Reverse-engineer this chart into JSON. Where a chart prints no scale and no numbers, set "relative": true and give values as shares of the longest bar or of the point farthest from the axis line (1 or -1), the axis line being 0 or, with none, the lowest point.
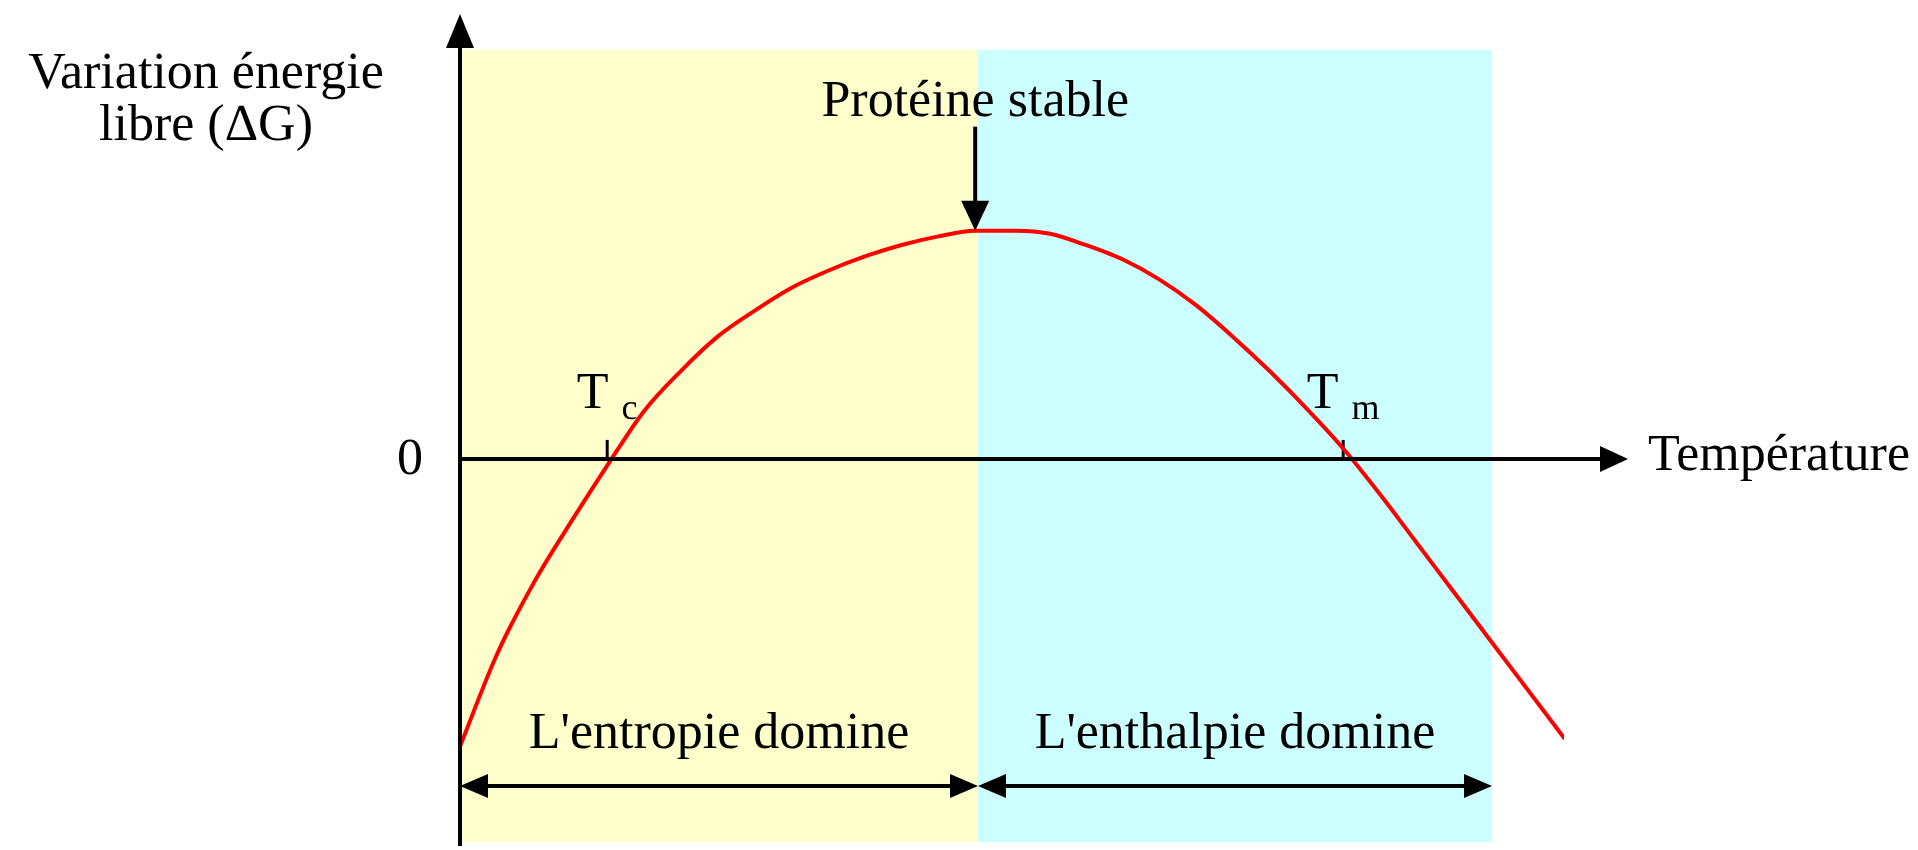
{
  "chart_data": {
    "type": "line",
    "xlabel": "Température",
    "ylabel": "Variation énergie libre (ΔG)",
    "relative": true,
    "categories": [
      null,
      null,
      null,
      null,
      "T $_{c}$",
      null,
      null,
      null,
      null,
      null,
      null,
      null,
      null,
      null,
      null,
      null,
      null,
      null,
      null,
      null,
      null,
      null,
      null,
      null,
      "T $_{m}$",
      null,
      null,
      null,
      null,
      null,
      null
    ],
    "series": [
      {
        "color": "#ff0000",
        "values": [
          -1,
          -0.68,
          -0.43,
          -0.22,
          -0.02,
          0.17,
          0.31,
          0.43,
          0.52,
          0.6,
          0.66,
          0.71,
          0.75,
          0.78,
          0.8,
          0.8,
          0.79,
          0.75,
          0.7,
          0.63,
          0.54,
          0.43,
          0.31,
          0.18,
          0.04,
          -0.12,
          -0.29,
          -0.46,
          -0.63,
          -0.8,
          -0.97
        ]
      }
    ],
    "annotations": [
      "0",
      "L'entropie domine",
      "L'enthalpie domine",
      {
        "text": "Protéine stable",
        "y": 0.8
      }
    ]
  }
}
